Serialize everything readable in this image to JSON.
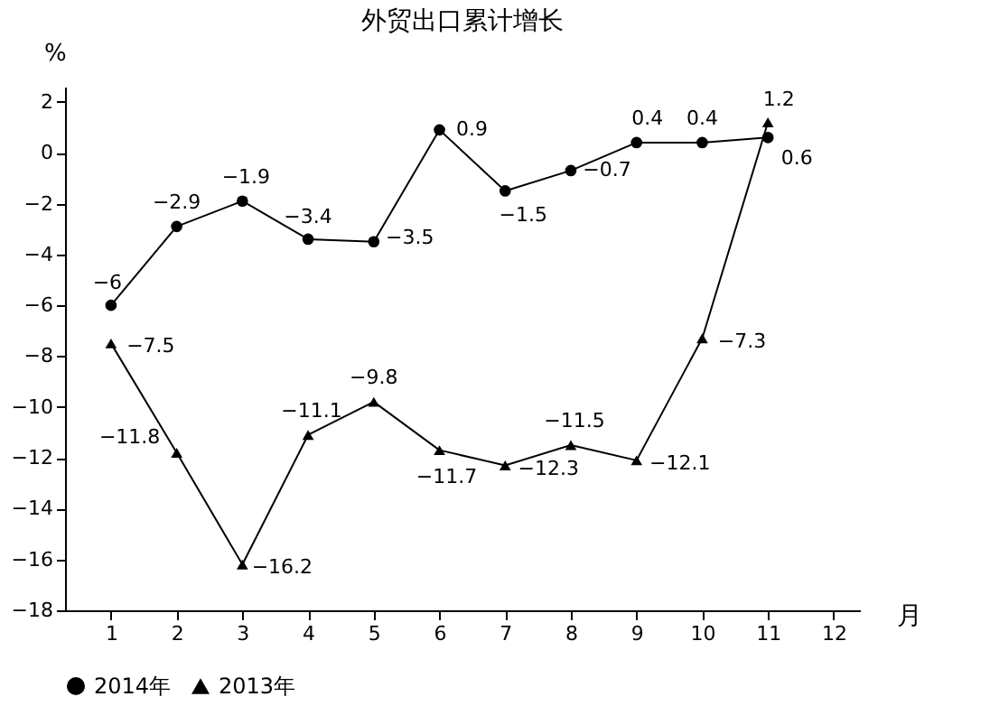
{
  "chart_data": {
    "type": "line",
    "title": "外贸出口累计增长",
    "xlabel": "月",
    "ylabel": "%",
    "x": [
      1,
      2,
      3,
      4,
      5,
      6,
      7,
      8,
      9,
      10,
      11
    ],
    "series": [
      {
        "name": "2014年",
        "color": "#000000",
        "marker": "circle",
        "values": [
          -6,
          -2.9,
          -1.9,
          -3.4,
          -3.5,
          0.9,
          -1.5,
          -0.7,
          0.4,
          0.4,
          0.6
        ]
      },
      {
        "name": "2013年",
        "color": "#000000",
        "marker": "triangle",
        "values": [
          -7.5,
          -11.8,
          -16.2,
          -11.1,
          -9.8,
          -11.7,
          -12.3,
          -11.5,
          -12.1,
          -7.3,
          1.2
        ]
      }
    ],
    "xlim": [
      0.3,
      12.4
    ],
    "xticks": [
      1,
      2,
      3,
      4,
      5,
      6,
      7,
      8,
      9,
      10,
      11,
      12
    ],
    "ylim": [
      -18,
      2.6
    ],
    "yticks": [
      -18,
      -16,
      -14,
      -12,
      -10,
      -8,
      -6,
      -4,
      -2,
      0,
      2
    ],
    "data_labels": true,
    "grid": false,
    "legend": "bottom",
    "line_style": "solid"
  }
}
